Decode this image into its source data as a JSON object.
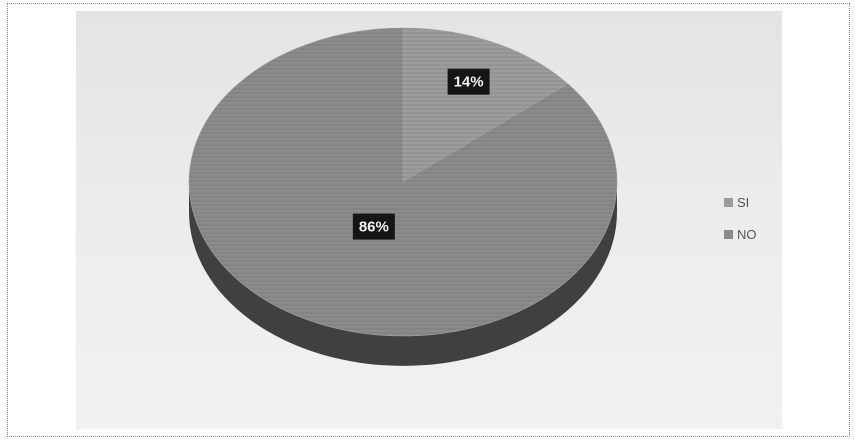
{
  "chart_data": {
    "type": "pie",
    "three_d": true,
    "categories": [
      "SI",
      "NO"
    ],
    "values": [
      14,
      86
    ],
    "data_labels": [
      "14%",
      "86%"
    ],
    "legend": {
      "position": "right",
      "entries": [
        "SI",
        "NO"
      ]
    },
    "title": "",
    "colors": {
      "SI": "#9c9c9c",
      "NO": "#8b8b8b",
      "side": "#404040",
      "label_background": "#151515",
      "label_text": "#f4f4f4"
    }
  }
}
